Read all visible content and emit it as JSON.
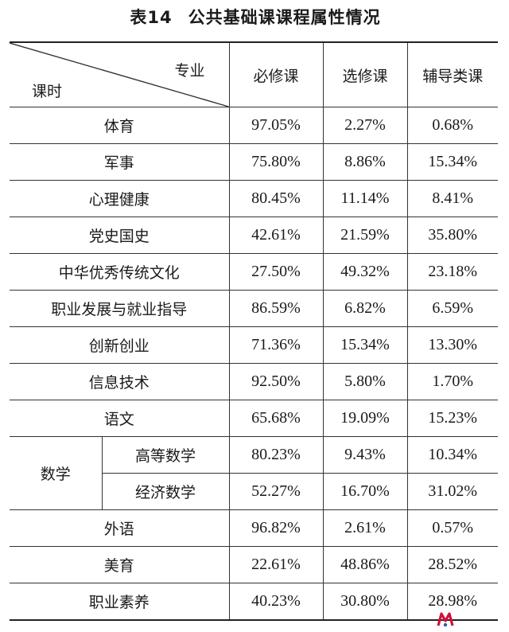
{
  "title": {
    "label": "表14",
    "text": "公共基础课课程属性情况"
  },
  "table": {
    "corner": {
      "top": "专业",
      "bottom": "课时"
    },
    "columns": [
      "必修课",
      "选修课",
      "辅导类课"
    ],
    "rows": [
      {
        "name": "体育",
        "values": [
          "97.05%",
          "2.27%",
          "0.68%"
        ]
      },
      {
        "name": "军事",
        "values": [
          "75.80%",
          "8.86%",
          "15.34%"
        ]
      },
      {
        "name": "心理健康",
        "values": [
          "80.45%",
          "11.14%",
          "8.41%"
        ]
      },
      {
        "name": "党史国史",
        "values": [
          "42.61%",
          "21.59%",
          "35.80%"
        ]
      },
      {
        "name": "中华优秀传统文化",
        "values": [
          "27.50%",
          "49.32%",
          "23.18%"
        ]
      },
      {
        "name": "职业发展与就业指导",
        "values": [
          "86.59%",
          "6.82%",
          "6.59%"
        ]
      },
      {
        "name": "创新创业",
        "values": [
          "71.36%",
          "15.34%",
          "13.30%"
        ]
      },
      {
        "name": "信息技术",
        "values": [
          "92.50%",
          "5.80%",
          "1.70%"
        ]
      },
      {
        "name": "语文",
        "values": [
          "65.68%",
          "19.09%",
          "15.23%"
        ]
      }
    ],
    "math": {
      "name": "数学",
      "subrows": [
        {
          "name": "高等数学",
          "values": [
            "80.23%",
            "9.43%",
            "10.34%"
          ]
        },
        {
          "name": "经济数学",
          "values": [
            "52.27%",
            "16.70%",
            "31.02%"
          ]
        }
      ]
    },
    "rows_after": [
      {
        "name": "外语",
        "values": [
          "96.82%",
          "2.61%",
          "0.57%"
        ]
      },
      {
        "name": "美育",
        "values": [
          "22.61%",
          "48.86%",
          "28.52%"
        ]
      },
      {
        "name": "职业素养",
        "values": [
          "40.23%",
          "30.80%",
          "28.98%"
        ]
      }
    ]
  },
  "watermark": {
    "icon": "watermark-logo-icon",
    "color": "#d0103a"
  }
}
